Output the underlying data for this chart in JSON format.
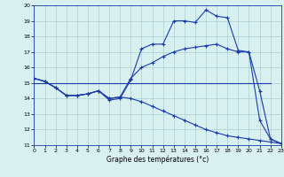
{
  "xlabel": "Graphe des températures (°c)",
  "bg_color": "#d8f0f0",
  "grid_color": "#aacfcf",
  "line_color": "#1a3aaa",
  "xlim": [
    0,
    23
  ],
  "ylim": [
    11,
    20
  ],
  "yticks": [
    11,
    12,
    13,
    14,
    15,
    16,
    17,
    18,
    19,
    20
  ],
  "xticks": [
    0,
    1,
    2,
    3,
    4,
    5,
    6,
    7,
    8,
    9,
    10,
    11,
    12,
    13,
    14,
    15,
    16,
    17,
    18,
    19,
    20,
    21,
    22,
    23
  ],
  "line1_x": [
    0,
    1,
    2,
    3,
    4,
    5,
    6,
    7,
    8,
    9,
    10,
    11,
    12,
    13,
    14,
    15,
    16,
    17,
    18,
    19,
    20,
    21,
    22,
    23
  ],
  "line1_y": [
    15.3,
    15.1,
    14.7,
    14.2,
    14.2,
    14.3,
    14.5,
    13.9,
    14.0,
    15.2,
    17.2,
    17.5,
    17.5,
    19.0,
    19.0,
    18.9,
    19.7,
    19.3,
    19.2,
    17.1,
    17.0,
    12.6,
    11.4,
    11.1
  ],
  "line2_x": [
    0,
    1,
    2,
    3,
    4,
    5,
    6,
    7,
    8,
    9,
    10,
    11,
    12,
    13,
    14,
    15,
    16,
    17,
    18,
    19,
    20,
    21,
    22,
    23
  ],
  "line2_y": [
    15.3,
    15.1,
    14.7,
    14.2,
    14.2,
    14.3,
    14.5,
    14.0,
    14.1,
    15.3,
    16.0,
    16.3,
    16.7,
    17.0,
    17.2,
    17.3,
    17.4,
    17.5,
    17.2,
    17.0,
    17.0,
    14.5,
    11.4,
    11.1
  ],
  "line3_x": [
    0,
    22
  ],
  "line3_y": [
    15.0,
    15.0
  ],
  "line4_x": [
    0,
    1,
    2,
    3,
    4,
    5,
    6,
    7,
    8,
    9,
    10,
    11,
    12,
    13,
    14,
    15,
    16,
    17,
    18,
    19,
    20,
    21,
    22,
    23
  ],
  "line4_y": [
    15.3,
    15.1,
    14.7,
    14.2,
    14.2,
    14.3,
    14.5,
    14.0,
    14.1,
    14.0,
    13.8,
    13.5,
    13.2,
    12.9,
    12.6,
    12.3,
    12.0,
    11.8,
    11.6,
    11.5,
    11.4,
    11.3,
    11.2,
    11.1
  ]
}
